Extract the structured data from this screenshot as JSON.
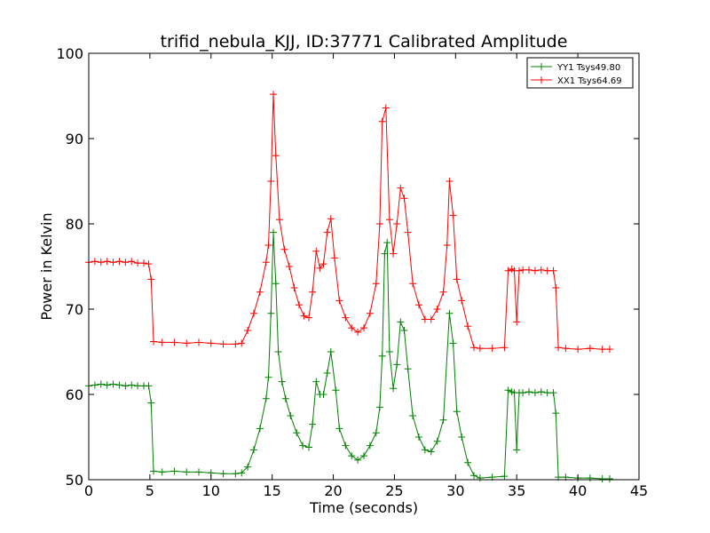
{
  "chart_data": {
    "type": "line",
    "title": "trifid_nebula_KJJ, ID:37771 Calibrated Amplitude",
    "xlabel": "Time (seconds)",
    "ylabel": "Power in Kelvin",
    "xlim": [
      0,
      45
    ],
    "ylim": [
      50,
      100
    ],
    "xticks": [
      "0",
      "5",
      "10",
      "15",
      "20",
      "25",
      "30",
      "35",
      "40",
      "45"
    ],
    "yticks": [
      "50",
      "60",
      "70",
      "80",
      "90",
      "100"
    ],
    "grid": false,
    "legend_position": "top-right",
    "marker": "plus",
    "series": [
      {
        "name": "YY1 Tsys49.80",
        "color": "#008000",
        "points": [
          [
            0,
            61.0
          ],
          [
            0.5,
            61.1
          ],
          [
            1,
            61.2
          ],
          [
            1.5,
            61.1
          ],
          [
            2,
            61.2
          ],
          [
            2.5,
            61.1
          ],
          [
            3,
            61.0
          ],
          [
            3.5,
            61.1
          ],
          [
            4,
            61.0
          ],
          [
            4.5,
            61.0
          ],
          [
            4.9,
            61.0
          ],
          [
            5.1,
            59.0
          ],
          [
            5.3,
            51.0
          ],
          [
            6,
            50.9
          ],
          [
            7,
            51.0
          ],
          [
            8,
            50.9
          ],
          [
            9,
            50.9
          ],
          [
            10,
            50.8
          ],
          [
            11,
            50.7
          ],
          [
            12,
            50.7
          ],
          [
            12.5,
            50.8
          ],
          [
            13,
            51.5
          ],
          [
            13.5,
            53.5
          ],
          [
            14,
            56.0
          ],
          [
            14.5,
            59.5
          ],
          [
            14.7,
            62.0
          ],
          [
            14.9,
            69.5
          ],
          [
            15.1,
            79.0
          ],
          [
            15.3,
            73.0
          ],
          [
            15.5,
            65.0
          ],
          [
            15.8,
            61.5
          ],
          [
            16.1,
            59.5
          ],
          [
            16.5,
            57.5
          ],
          [
            17,
            55.5
          ],
          [
            17.5,
            54.0
          ],
          [
            18,
            53.8
          ],
          [
            18.3,
            56.5
          ],
          [
            18.6,
            61.5
          ],
          [
            18.9,
            60.0
          ],
          [
            19.2,
            60.0
          ],
          [
            19.5,
            62.5
          ],
          [
            19.8,
            65.0
          ],
          [
            20.2,
            60.5
          ],
          [
            20.5,
            56.0
          ],
          [
            21,
            54.0
          ],
          [
            21.5,
            52.8
          ],
          [
            22,
            52.3
          ],
          [
            22.5,
            52.8
          ],
          [
            23,
            54.0
          ],
          [
            23.5,
            55.5
          ],
          [
            23.8,
            58.5
          ],
          [
            24,
            64.5
          ],
          [
            24.2,
            76.5
          ],
          [
            24.4,
            77.8
          ],
          [
            24.6,
            65.0
          ],
          [
            24.9,
            60.7
          ],
          [
            25.2,
            63.5
          ],
          [
            25.5,
            68.5
          ],
          [
            25.8,
            67.5
          ],
          [
            26.1,
            63.0
          ],
          [
            26.5,
            57.5
          ],
          [
            27,
            55.0
          ],
          [
            27.5,
            53.5
          ],
          [
            28,
            53.3
          ],
          [
            28.5,
            54.5
          ],
          [
            29,
            57.0
          ],
          [
            29.5,
            69.5
          ],
          [
            29.8,
            66.0
          ],
          [
            30.1,
            58.0
          ],
          [
            30.5,
            55.0
          ],
          [
            31,
            52.0
          ],
          [
            31.5,
            50.5
          ],
          [
            32,
            50.2
          ],
          [
            33,
            50.3
          ],
          [
            34,
            50.4
          ],
          [
            34.3,
            60.5
          ],
          [
            34.6,
            60.3
          ],
          [
            34.8,
            60.2
          ],
          [
            35,
            53.5
          ],
          [
            35.2,
            60.2
          ],
          [
            35.5,
            60.2
          ],
          [
            36,
            60.3
          ],
          [
            36.5,
            60.2
          ],
          [
            37,
            60.3
          ],
          [
            37.5,
            60.2
          ],
          [
            38,
            60.2
          ],
          [
            38.2,
            57.8
          ],
          [
            38.4,
            50.3
          ],
          [
            39,
            50.3
          ],
          [
            40,
            50.2
          ],
          [
            41,
            50.2
          ],
          [
            42,
            50.1
          ],
          [
            42.6,
            50.1
          ]
        ]
      },
      {
        "name": "XX1 Tsys64.69",
        "color": "#ff0000",
        "points": [
          [
            0,
            75.5
          ],
          [
            0.5,
            75.6
          ],
          [
            1,
            75.5
          ],
          [
            1.5,
            75.6
          ],
          [
            2,
            75.5
          ],
          [
            2.5,
            75.6
          ],
          [
            3,
            75.5
          ],
          [
            3.5,
            75.6
          ],
          [
            4,
            75.4
          ],
          [
            4.5,
            75.4
          ],
          [
            4.9,
            75.3
          ],
          [
            5.1,
            73.5
          ],
          [
            5.3,
            66.2
          ],
          [
            6,
            66.1
          ],
          [
            7,
            66.1
          ],
          [
            8,
            66.0
          ],
          [
            9,
            66.1
          ],
          [
            10,
            66.0
          ],
          [
            11,
            65.9
          ],
          [
            12,
            65.9
          ],
          [
            12.5,
            66.0
          ],
          [
            13,
            67.5
          ],
          [
            13.5,
            69.5
          ],
          [
            14,
            72.0
          ],
          [
            14.5,
            75.5
          ],
          [
            14.7,
            77.5
          ],
          [
            14.9,
            85.0
          ],
          [
            15.1,
            95.2
          ],
          [
            15.3,
            88.0
          ],
          [
            15.6,
            80.5
          ],
          [
            16,
            77.0
          ],
          [
            16.4,
            75.0
          ],
          [
            16.8,
            72.5
          ],
          [
            17.2,
            70.5
          ],
          [
            17.6,
            69.2
          ],
          [
            18,
            69.0
          ],
          [
            18.3,
            72.0
          ],
          [
            18.6,
            76.8
          ],
          [
            18.9,
            74.8
          ],
          [
            19.2,
            75.3
          ],
          [
            19.5,
            79.0
          ],
          [
            19.8,
            80.6
          ],
          [
            20.1,
            76.0
          ],
          [
            20.5,
            71.0
          ],
          [
            21,
            69.0
          ],
          [
            21.5,
            67.8
          ],
          [
            22,
            67.3
          ],
          [
            22.5,
            67.8
          ],
          [
            23,
            69.5
          ],
          [
            23.5,
            73.0
          ],
          [
            23.8,
            80.0
          ],
          [
            24,
            92.0
          ],
          [
            24.3,
            93.6
          ],
          [
            24.6,
            80.5
          ],
          [
            24.9,
            76.5
          ],
          [
            25.2,
            80.0
          ],
          [
            25.5,
            84.2
          ],
          [
            25.8,
            83.0
          ],
          [
            26.1,
            79.0
          ],
          [
            26.5,
            73.0
          ],
          [
            27,
            70.5
          ],
          [
            27.5,
            68.8
          ],
          [
            28,
            68.8
          ],
          [
            28.5,
            70.0
          ],
          [
            29,
            72.0
          ],
          [
            29.3,
            77.5
          ],
          [
            29.5,
            85.0
          ],
          [
            29.8,
            81.0
          ],
          [
            30.1,
            73.5
          ],
          [
            30.5,
            71.0
          ],
          [
            31,
            68.0
          ],
          [
            31.5,
            65.5
          ],
          [
            32,
            65.4
          ],
          [
            33,
            65.4
          ],
          [
            34,
            65.5
          ],
          [
            34.3,
            74.5
          ],
          [
            34.6,
            74.7
          ],
          [
            34.8,
            74.5
          ],
          [
            35,
            68.5
          ],
          [
            35.2,
            74.5
          ],
          [
            35.5,
            74.6
          ],
          [
            36,
            74.6
          ],
          [
            36.5,
            74.5
          ],
          [
            37,
            74.6
          ],
          [
            37.5,
            74.5
          ],
          [
            38,
            74.5
          ],
          [
            38.2,
            72.5
          ],
          [
            38.4,
            65.5
          ],
          [
            39,
            65.4
          ],
          [
            40,
            65.3
          ],
          [
            41,
            65.4
          ],
          [
            42,
            65.3
          ],
          [
            42.6,
            65.3
          ]
        ]
      }
    ]
  }
}
